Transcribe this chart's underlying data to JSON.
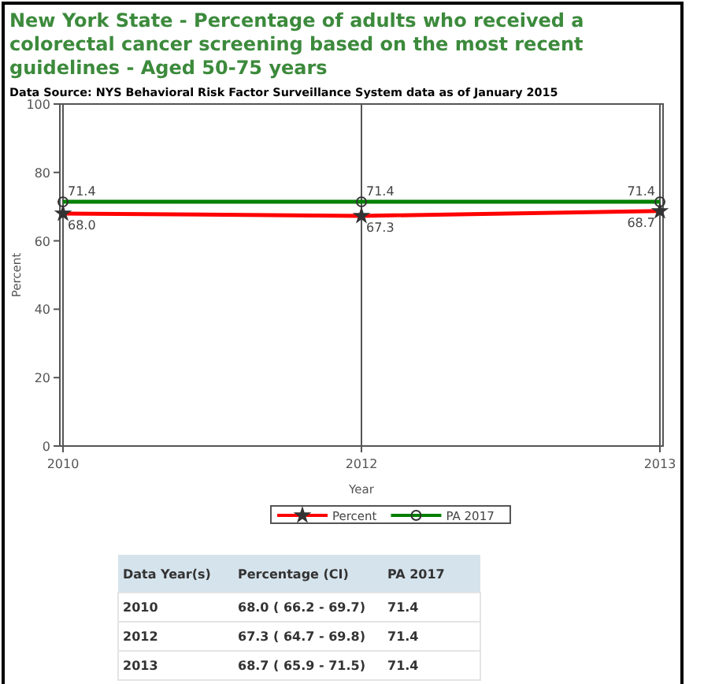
{
  "chart_data": {
    "type": "line",
    "title": "New York State - Percentage of adults who received a colorectal cancer screening based on the most recent guidelines - Aged 50-75 years",
    "subtitle": "Data Source: NYS Behavioral Risk Factor Surveillance System data as of January 2015",
    "xlabel": "Year",
    "ylabel": "Percent",
    "categories": [
      "2010",
      "2012",
      "2013"
    ],
    "series": [
      {
        "name": "Percent",
        "color": "#ff0000",
        "marker": "star",
        "values": [
          68.0,
          67.3,
          68.7
        ],
        "value_labels": [
          "68.0",
          "67.3",
          "68.7"
        ]
      },
      {
        "name": "PA 2017",
        "color": "#008000",
        "marker": "circle",
        "values": [
          71.4,
          71.4,
          71.4
        ],
        "value_labels": [
          "71.4",
          "71.4",
          "71.4"
        ]
      }
    ],
    "ylim": [
      0,
      100
    ],
    "yticks": [
      0,
      20,
      40,
      60,
      80,
      100
    ],
    "grid": "x",
    "legend": "bottom",
    "annotations": [
      "Data Year(s)",
      "Percentage (CI)",
      "PA 2017",
      "68.0 ( 66.2 - 69.7)",
      "71.4",
      "67.3 ( 64.7 - 69.8)",
      "71.4",
      "68.7 ( 65.9 - 71.5)",
      "71.4"
    ]
  }
}
